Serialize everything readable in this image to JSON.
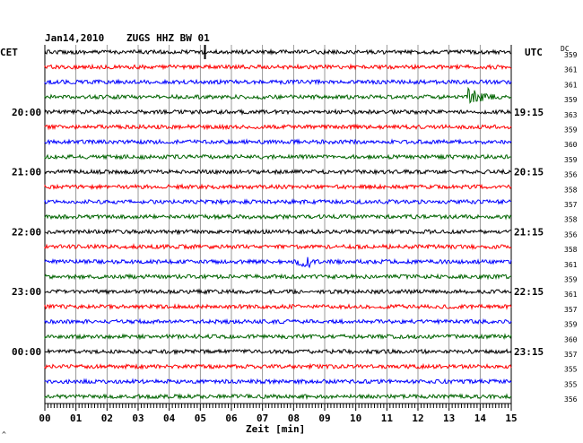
{
  "header": {
    "date": "Jan14,2010",
    "station": "ZUGS HHZ BW 01",
    "left_tz": "CET",
    "right_tz": "UTC",
    "dc_label": "DC"
  },
  "chart_data": {
    "type": "line",
    "title": "Jan14,2010   ZUGS HHZ BW 01",
    "xlabel": "Zeit [min]",
    "ylabel": "",
    "x_ticks": [
      "00",
      "01",
      "02",
      "03",
      "04",
      "05",
      "06",
      "07",
      "08",
      "09",
      "10",
      "11",
      "12",
      "13",
      "14",
      "15"
    ],
    "xlim": [
      0,
      15
    ],
    "grid": true,
    "colors": [
      "#000000",
      "#ff0000",
      "#0000ff",
      "#006400"
    ],
    "left_hour_labels": [
      {
        "row": 4,
        "label": "20:00"
      },
      {
        "row": 8,
        "label": "21:00"
      },
      {
        "row": 12,
        "label": "22:00"
      },
      {
        "row": 16,
        "label": "23:00"
      },
      {
        "row": 20,
        "label": "00:00"
      }
    ],
    "right_hour_labels": [
      {
        "row": 4,
        "label": "19:15"
      },
      {
        "row": 8,
        "label": "20:15"
      },
      {
        "row": 12,
        "label": "21:15"
      },
      {
        "row": 16,
        "label": "22:15"
      },
      {
        "row": 20,
        "label": "23:15"
      }
    ],
    "dc_offsets": [
      "359",
      "361",
      "361",
      "359",
      "363",
      "359",
      "360",
      "359",
      "356",
      "358",
      "357",
      "358",
      "356",
      "358",
      "361",
      "359",
      "361",
      "357",
      "359",
      "360",
      "357",
      "355",
      "355",
      "356"
    ],
    "events": [
      {
        "row": 0,
        "minute": 5.15,
        "type": "spike"
      },
      {
        "row": 3,
        "minute": 13.65,
        "type": "quake"
      },
      {
        "row": 14,
        "minute": 8.3,
        "type": "burst"
      }
    ]
  },
  "footnote": "^"
}
